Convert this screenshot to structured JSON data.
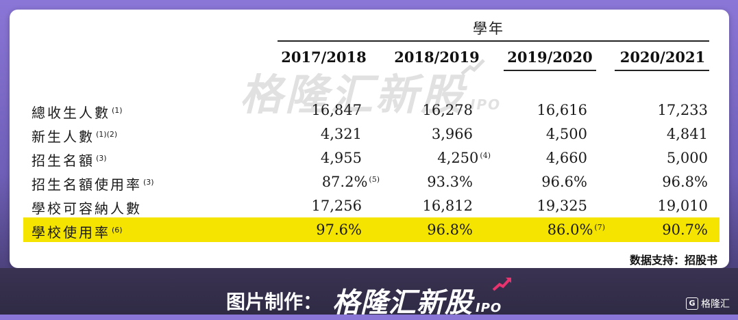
{
  "table": {
    "group_header": "學年",
    "columns": [
      "2017/2018",
      "2018/2019",
      "2019/2020",
      "2020/2021"
    ],
    "rows": [
      {
        "label": "總收生人數",
        "note": "(1)",
        "values": [
          "16,847",
          "16,278",
          "16,616",
          "17,233"
        ],
        "notes": [
          "",
          "",
          "",
          ""
        ]
      },
      {
        "label": "新生人數",
        "note": "(1)(2)",
        "values": [
          "4,321",
          "3,966",
          "4,500",
          "4,841"
        ],
        "notes": [
          "",
          "",
          "",
          ""
        ]
      },
      {
        "label": "招生名額",
        "note": "(3)",
        "values": [
          "4,955",
          "4,250",
          "4,660",
          "5,000"
        ],
        "notes": [
          "",
          "(4)",
          "",
          ""
        ]
      },
      {
        "label": "招生名額使用率",
        "note": "(3)",
        "values": [
          "87.2%",
          "93.3%",
          "96.6%",
          "96.8%"
        ],
        "notes": [
          "(5)",
          "",
          "",
          ""
        ]
      },
      {
        "label": "學校可容納人數",
        "note": "",
        "values": [
          "17,256",
          "16,812",
          "19,325",
          "19,010"
        ],
        "notes": [
          "",
          "",
          "",
          ""
        ]
      },
      {
        "label": "學校使用率",
        "note": "(6)",
        "values": [
          "97.6%",
          "96.8%",
          "86.0%",
          "90.7%"
        ],
        "notes": [
          "",
          "",
          "(7)",
          ""
        ]
      }
    ],
    "highlight_color": "#f5e400"
  },
  "source": "数据支持：招股书",
  "watermark": {
    "text": "格隆汇新股",
    "suffix": "IPO"
  },
  "footer": {
    "caption": "图片制作：",
    "logo_text": "格隆汇新股",
    "logo_suffix": "IPO",
    "corner_brand": "格隆汇",
    "corner_badge": "G"
  },
  "colors": {
    "accent": "#e8336e",
    "card": "#ffffff",
    "frame": "#7a68c8"
  }
}
